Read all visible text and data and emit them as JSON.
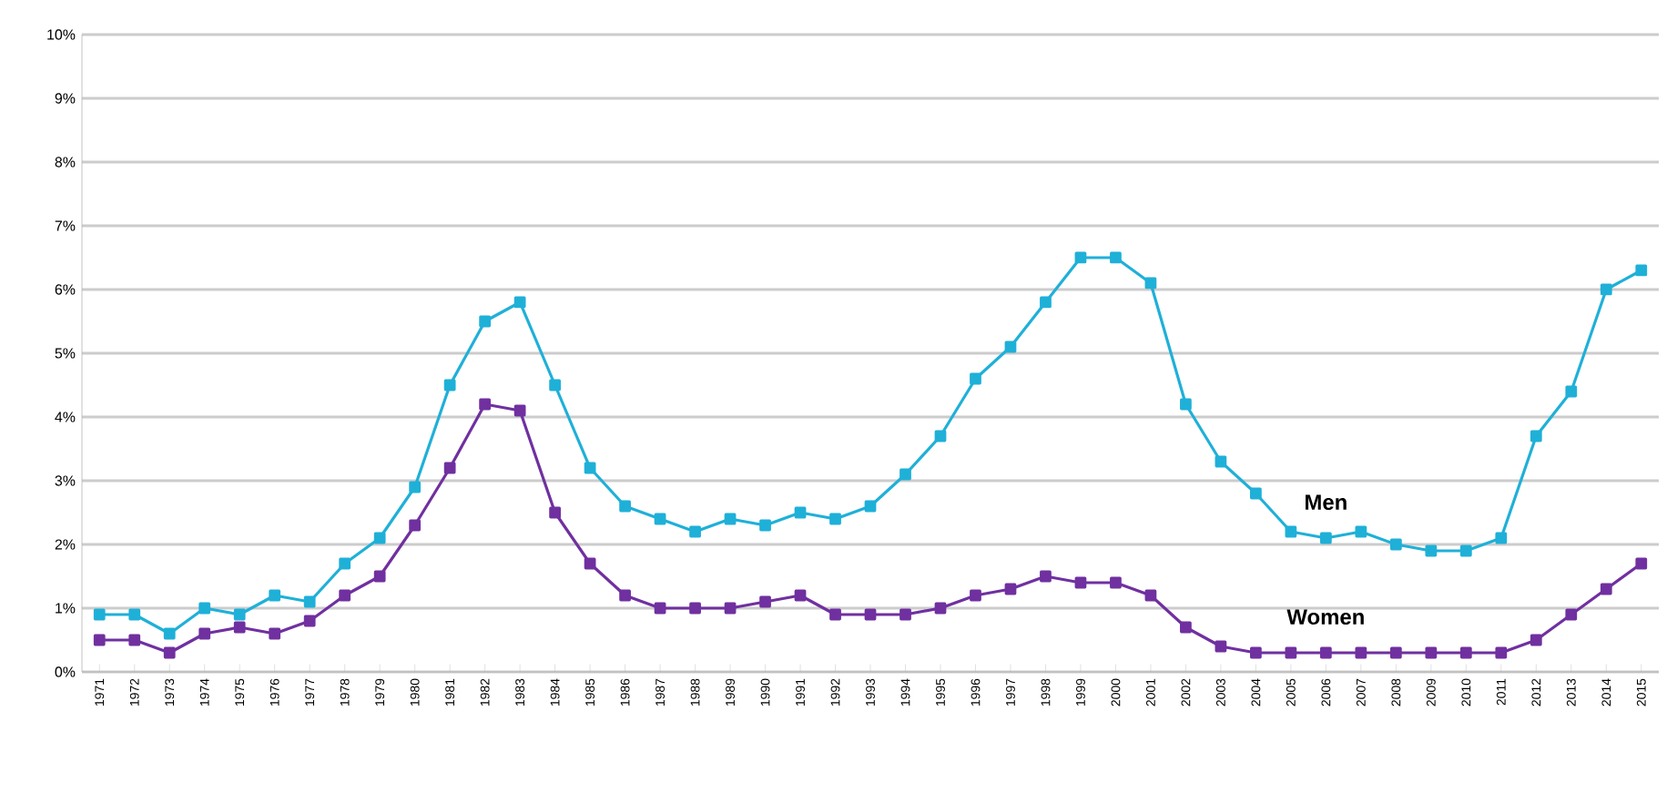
{
  "chart_data": {
    "type": "line",
    "categories": [
      "1971",
      "1972",
      "1973",
      "1974",
      "1975",
      "1976",
      "1977",
      "1978",
      "1979",
      "1980",
      "1981",
      "1982",
      "1983",
      "1984",
      "1985",
      "1986",
      "1987",
      "1988",
      "1989",
      "1990",
      "1991",
      "1992",
      "1993",
      "1994",
      "1995",
      "1996",
      "1997",
      "1998",
      "1999",
      "2000",
      "2001",
      "2002",
      "2003",
      "2004",
      "2005",
      "2006",
      "2007",
      "2008",
      "2009",
      "2010",
      "2011",
      "2012",
      "2013",
      "2014",
      "2015"
    ],
    "series": [
      {
        "name": "Men",
        "color": "#1fb0d8",
        "values": [
          0.9,
          0.9,
          0.6,
          1.0,
          0.9,
          1.2,
          1.1,
          1.7,
          2.1,
          2.9,
          4.5,
          5.5,
          5.8,
          4.5,
          3.2,
          2.6,
          2.4,
          2.2,
          2.4,
          2.3,
          2.5,
          2.4,
          2.6,
          3.1,
          3.7,
          4.6,
          5.1,
          5.8,
          6.5,
          6.5,
          6.1,
          4.2,
          3.3,
          2.8,
          2.2,
          2.1,
          2.2,
          2.0,
          1.9,
          1.9,
          2.1,
          3.7,
          4.4,
          6.0,
          6.3
        ]
      },
      {
        "name": "Women",
        "color": "#7030a0",
        "values": [
          0.5,
          0.5,
          0.3,
          0.6,
          0.7,
          0.6,
          0.8,
          1.2,
          1.5,
          2.3,
          3.2,
          4.2,
          4.1,
          2.5,
          1.7,
          1.2,
          1.0,
          1.0,
          1.0,
          1.1,
          1.2,
          0.9,
          0.9,
          0.9,
          1.0,
          1.2,
          1.3,
          1.5,
          1.4,
          1.4,
          1.2,
          0.7,
          0.4,
          0.3,
          0.3,
          0.3,
          0.3,
          0.3,
          0.3,
          0.3,
          0.3,
          0.5,
          0.9,
          1.3,
          1.7
        ]
      }
    ],
    "ylim": [
      0,
      10
    ],
    "yticks": [
      {
        "value": 0,
        "label": "0%"
      },
      {
        "value": 1,
        "label": "1%"
      },
      {
        "value": 2,
        "label": "2%"
      },
      {
        "value": 3,
        "label": "3%"
      },
      {
        "value": 4,
        "label": "4%"
      },
      {
        "value": 5,
        "label": "5%"
      },
      {
        "value": 6,
        "label": "6%"
      },
      {
        "value": 7,
        "label": "7%"
      },
      {
        "value": 8,
        "label": "8%"
      },
      {
        "value": 9,
        "label": "9%"
      },
      {
        "value": 10,
        "label": "10%"
      }
    ],
    "grid": "y",
    "marker": "square",
    "line_style": "solid"
  }
}
